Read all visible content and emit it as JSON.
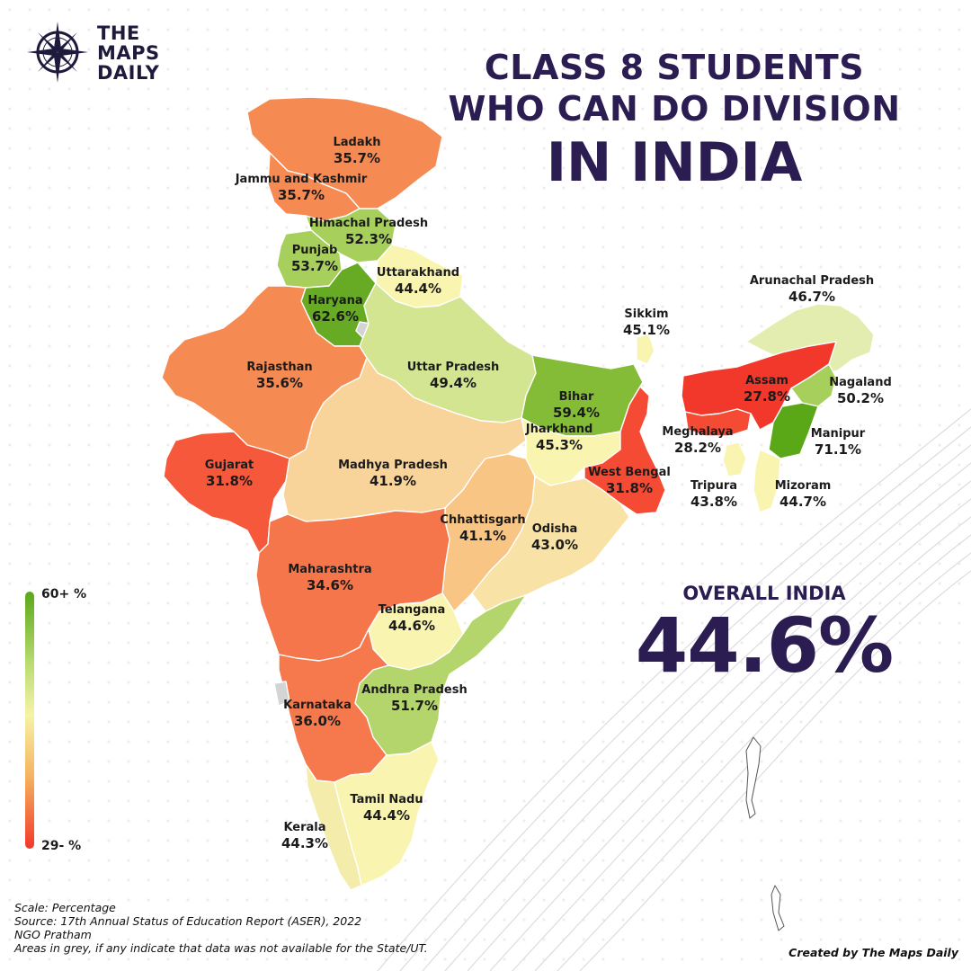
{
  "brand": {
    "line1": "THE",
    "line2": "MAPS",
    "line3": "DAILY"
  },
  "title": {
    "line1": "CLASS 8 STUDENTS",
    "line2": "WHO CAN DO DIVISION",
    "line3": "IN INDIA"
  },
  "overall": {
    "label": "OVERALL INDIA",
    "value": "44.6%"
  },
  "legend": {
    "top": "60+ %",
    "bottom": "29- %"
  },
  "colors": {
    "scale_high": "#5aa718",
    "scale_mid": "#f6f3a7",
    "scale_low": "#f2382a",
    "title": "#2b1d52",
    "no_data": "#d4d4d4"
  },
  "states": [
    {
      "name": "Ladakh",
      "value": "35.7%"
    },
    {
      "name": "Jammu and Kashmir",
      "value": "35.7%"
    },
    {
      "name": "Himachal Pradesh",
      "value": "52.3%"
    },
    {
      "name": "Punjab",
      "value": "53.7%"
    },
    {
      "name": "Uttarakhand",
      "value": "44.4%"
    },
    {
      "name": "Haryana",
      "value": "62.6%"
    },
    {
      "name": "Rajasthan",
      "value": "35.6%"
    },
    {
      "name": "Uttar Pradesh",
      "value": "49.4%"
    },
    {
      "name": "Bihar",
      "value": "59.4%"
    },
    {
      "name": "Sikkim",
      "value": "45.1%"
    },
    {
      "name": "Arunachal Pradesh",
      "value": "46.7%"
    },
    {
      "name": "Assam",
      "value": "27.8%"
    },
    {
      "name": "Nagaland",
      "value": "50.2%"
    },
    {
      "name": "Meghalaya",
      "value": "28.2%"
    },
    {
      "name": "Manipur",
      "value": "71.1%"
    },
    {
      "name": "Gujarat",
      "value": "31.8%"
    },
    {
      "name": "Madhya Pradesh",
      "value": "41.9%"
    },
    {
      "name": "Jharkhand",
      "value": "45.3%"
    },
    {
      "name": "West Bengal",
      "value": "31.8%"
    },
    {
      "name": "Tripura",
      "value": "43.8%"
    },
    {
      "name": "Mizoram",
      "value": "44.7%"
    },
    {
      "name": "Chhattisgarh",
      "value": "41.1%"
    },
    {
      "name": "Odisha",
      "value": "43.0%"
    },
    {
      "name": "Maharashtra",
      "value": "34.6%"
    },
    {
      "name": "Telangana",
      "value": "44.6%"
    },
    {
      "name": "Andhra Pradesh",
      "value": "51.7%"
    },
    {
      "name": "Karnataka",
      "value": "36.0%"
    },
    {
      "name": "Tamil Nadu",
      "value": "44.4%"
    },
    {
      "name": "Kerala",
      "value": "44.3%"
    }
  ],
  "footer": {
    "scale": "Scale: Percentage",
    "source": "Source: 17th Annual Status of Education Report (ASER), 2022",
    "org": "NGO Pratham",
    "note": "Areas in grey, if any indicate that data was not available for the State/UT.",
    "credit": "Created by The Maps Daily"
  }
}
